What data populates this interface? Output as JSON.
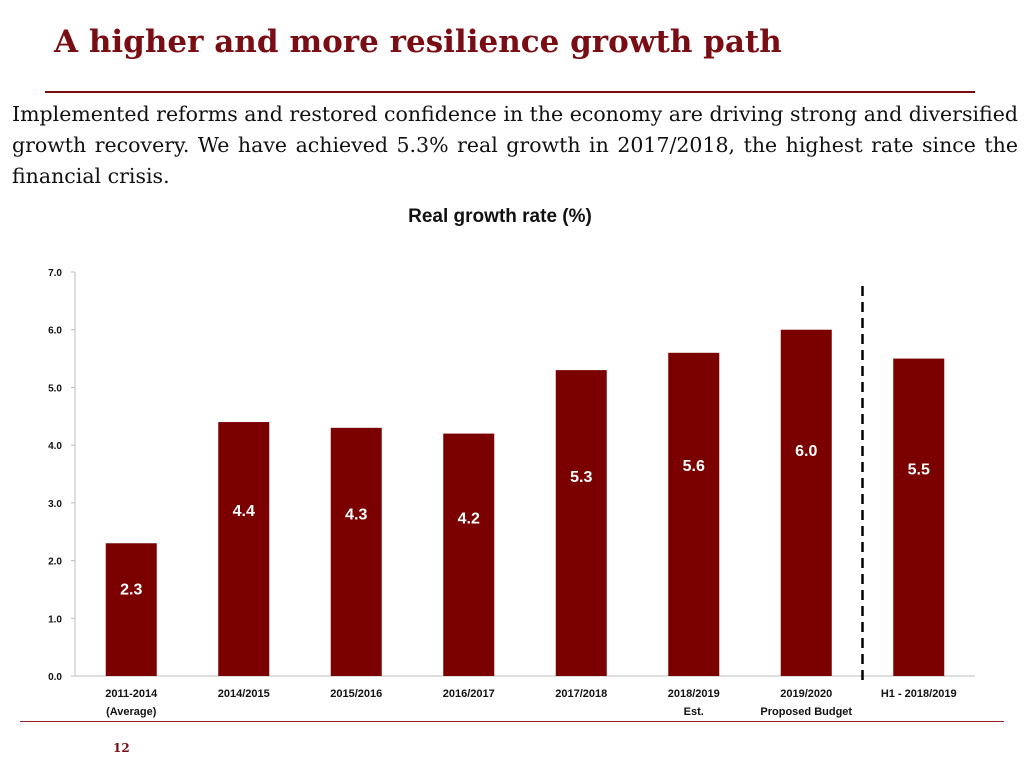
{
  "slide": {
    "title": "A higher and more resilience growth path",
    "body": "Implemented reforms and restored confidence in the economy are driving strong and diversified growth recovery. We have achieved 5.3% real growth in  2017/2018, the highest rate since the financial crisis.",
    "page_number": "12"
  },
  "colors": {
    "title": "#7a0c14",
    "bar": "#7b0000",
    "bar_label": "#ffffff",
    "rule": "#9a1e24"
  },
  "chart_data": {
    "type": "bar",
    "title": "Real growth rate (%)",
    "xlabel": "",
    "ylabel": "",
    "ylim": [
      0,
      7
    ],
    "yticks": [
      "0.0",
      "1.0",
      "2.0",
      "3.0",
      "4.0",
      "5.0",
      "6.0",
      "7.0"
    ],
    "categories": [
      [
        "2011-2014",
        "(Average)"
      ],
      [
        "2014/2015"
      ],
      [
        "2015/2016"
      ],
      [
        "2016/2017"
      ],
      [
        "2017/2018"
      ],
      [
        "2018/2019",
        "Est."
      ],
      [
        "2019/2020",
        "Proposed Budget"
      ],
      [
        "H1 - 2018/2019"
      ]
    ],
    "values": [
      2.3,
      4.4,
      4.3,
      4.2,
      5.3,
      5.6,
      6.0,
      5.5
    ],
    "data_labels": [
      "2.3",
      "4.4",
      "4.3",
      "4.2",
      "5.3",
      "5.6",
      "6.0",
      "5.5"
    ],
    "divider_after_index": 6,
    "divider_style": "dashed",
    "grid": false
  }
}
